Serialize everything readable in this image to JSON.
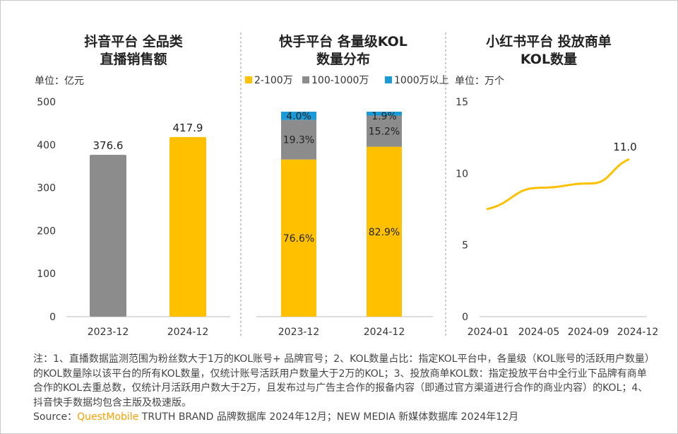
{
  "watermark": "QUESTMOBILE",
  "chart_data": [
    {
      "type": "bar",
      "title": [
        "抖音平台 全品类",
        "直播销售额"
      ],
      "unit": "单位：亿元",
      "categories": [
        "2023-12",
        "2024-12"
      ],
      "values": [
        376.6,
        417.9
      ],
      "ylim": [
        0,
        500
      ],
      "yticks": [
        0,
        100,
        200,
        300,
        400,
        500
      ],
      "colors": [
        "#8c8c8c",
        "#ffc000"
      ]
    },
    {
      "type": "bar",
      "stacked": true,
      "title": [
        "快手平台 各量级KOL",
        "数量分布"
      ],
      "categories": [
        "2023-12",
        "2024-12"
      ],
      "legend": "top",
      "series": [
        {
          "name": "2-100万",
          "values": [
            76.6,
            82.9
          ],
          "labels": [
            "76.6%",
            "82.9%"
          ],
          "color": "#ffc000"
        },
        {
          "name": "100-1000万",
          "values": [
            19.3,
            15.2
          ],
          "labels": [
            "19.3%",
            "15.2%"
          ],
          "color": "#8c8c8c"
        },
        {
          "name": "1000万以上",
          "values": [
            4.0,
            1.9
          ],
          "labels": [
            "4.0%",
            "1.9%"
          ],
          "color": "#1a9bd7"
        }
      ]
    },
    {
      "type": "line",
      "title": [
        "小红书平台 投放商单",
        "KOL数量"
      ],
      "unit": "单位：万个",
      "x": [
        "2024-01",
        "2024-05",
        "2024-09",
        "2024-12"
      ],
      "values": [
        7.5,
        9.0,
        9.3,
        11.0
      ],
      "label": "11.0",
      "ylim": [
        0,
        15
      ],
      "yticks": [
        0,
        5,
        10,
        15
      ],
      "color": "#ffc000"
    }
  ],
  "notes": "注：1、直播数据监测范围为粉丝数大于1万的KOL账号+ 品牌官号；2、KOL数量占比：指定KOL平台中，各量级（KOL账号的活跃用户数量）的KOL数量除以该平台的所有KOL数量，仅统计账号活跃用户数量大于2万的KOL；3、投放商单KOL数：指定投放平台中全行业下品牌有商单合作的KOL去重总数，仅统计月活跃用户数大于2万，且发布过与广告主合作的报备内容（即通过官方渠道进行合作的商业内容）的KOL；4、抖音快手数据均包含主版及极速版。",
  "source": {
    "prefix": "Source：",
    "brand": "QuestMobile",
    "rest": " TRUTH BRAND 品牌数据库 2024年12月；NEW MEDIA 新媒体数据库 2024年12月"
  }
}
